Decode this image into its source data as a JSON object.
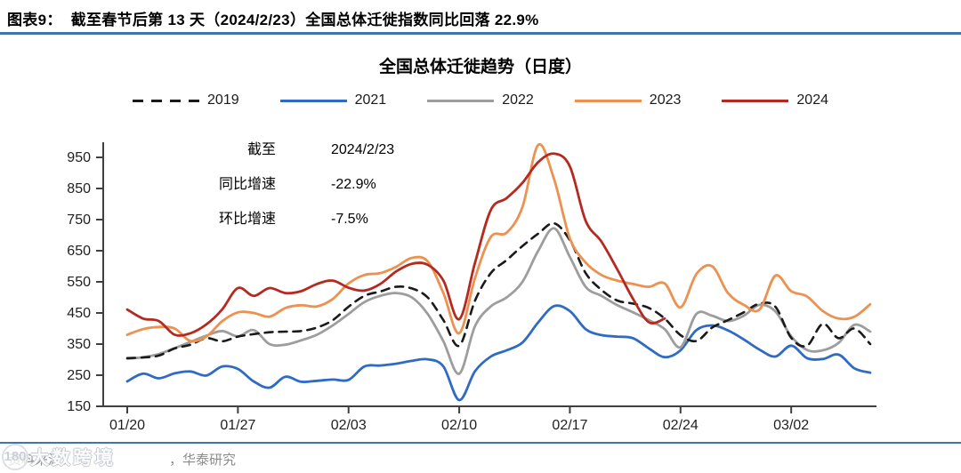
{
  "page": {
    "figure_label": "图表9：",
    "figure_title": "截至春节后第 13 天（2024/2/23）全国总体迁徙指数同比回落 22.9%"
  },
  "annotation": {
    "rows": [
      {
        "label": "截至",
        "value": "2024/2/23"
      },
      {
        "label": "同比增速",
        "value": "-22.9%"
      },
      {
        "label": "环比增速",
        "value": "-7.5%"
      }
    ]
  },
  "footer": {
    "source_prefix": "资料来源：",
    "source_suffix": "，华泰研究",
    "watermark_logo": "180",
    "watermark_text": "大数跨境"
  },
  "chart_data": {
    "type": "line",
    "title": "全国总体迁徙趋势（日度）",
    "xlabel": "",
    "ylabel": "",
    "ylim": [
      150,
      950
    ],
    "y_ticks": [
      150,
      250,
      350,
      450,
      550,
      650,
      750,
      850,
      950
    ],
    "grid": false,
    "legend_position": "top",
    "x": [
      "01/20",
      "01/21",
      "01/22",
      "01/23",
      "01/24",
      "01/25",
      "01/26",
      "01/27",
      "01/28",
      "01/29",
      "01/30",
      "01/31",
      "02/01",
      "02/02",
      "02/03",
      "02/04",
      "02/05",
      "02/06",
      "02/07",
      "02/08",
      "02/09",
      "02/10",
      "02/11",
      "02/12",
      "02/13",
      "02/14",
      "02/15",
      "02/16",
      "02/17",
      "02/18",
      "02/19",
      "02/20",
      "02/21",
      "02/22",
      "02/23",
      "02/24",
      "02/25",
      "02/26",
      "02/27",
      "02/28",
      "02/29",
      "03/01",
      "03/02",
      "03/03",
      "03/04",
      "03/05",
      "03/06",
      "03/07"
    ],
    "x_tick_labels": [
      "01/20",
      "01/27",
      "02/03",
      "02/10",
      "02/17",
      "02/24",
      "03/02"
    ],
    "x_tick_indices": [
      0,
      7,
      14,
      21,
      28,
      35,
      42
    ],
    "series": [
      {
        "name": "2019",
        "color": "#1a1a1a",
        "dash": true,
        "values": [
          305,
          307,
          313,
          336,
          348,
          369,
          359,
          374,
          382,
          388,
          390,
          392,
          403,
          427,
          470,
          505,
          519,
          534,
          529,
          500,
          427,
          345,
          490,
          578,
          620,
          665,
          705,
          738,
          684,
          578,
          524,
          490,
          480,
          466,
          432,
          379,
          360,
          403,
          427,
          452,
          480,
          470,
          370,
          345,
          415,
          369,
          400,
          350
        ]
      },
      {
        "name": "2021",
        "color": "#2f6bc4",
        "dash": false,
        "values": [
          230,
          255,
          240,
          256,
          262,
          249,
          278,
          270,
          230,
          210,
          245,
          229,
          232,
          236,
          235,
          278,
          281,
          287,
          296,
          301,
          278,
          170,
          263,
          310,
          330,
          355,
          420,
          472,
          456,
          398,
          379,
          374,
          369,
          336,
          308,
          330,
          395,
          410,
          394,
          365,
          332,
          310,
          345,
          305,
          302,
          316,
          272,
          258
        ]
      },
      {
        "name": "2022",
        "color": "#9d9d9d",
        "dash": false,
        "values": [
          303,
          308,
          318,
          337,
          357,
          377,
          392,
          375,
          395,
          350,
          348,
          362,
          380,
          410,
          447,
          485,
          505,
          514,
          500,
          447,
          359,
          255,
          408,
          471,
          500,
          550,
          650,
          722,
          630,
          534,
          505,
          475,
          452,
          427,
          398,
          340,
          447,
          441,
          424,
          441,
          476,
          455,
          375,
          331,
          330,
          354,
          412,
          390
        ]
      },
      {
        "name": "2023",
        "color": "#ed9150",
        "dash": false,
        "values": [
          380,
          398,
          405,
          400,
          360,
          374,
          423,
          452,
          450,
          438,
          466,
          475,
          471,
          495,
          545,
          572,
          578,
          598,
          627,
          616,
          514,
          385,
          563,
          694,
          708,
          790,
          990,
          880,
          690,
          612,
          572,
          554,
          543,
          534,
          545,
          468,
          575,
          600,
          514,
          476,
          461,
          570,
          520,
          503,
          456,
          432,
          438,
          478
        ]
      },
      {
        "name": "2024",
        "color": "#b52a20",
        "dash": false,
        "values": [
          461,
          432,
          424,
          380,
          385,
          413,
          461,
          530,
          505,
          530,
          514,
          520,
          543,
          554,
          531,
          522,
          543,
          583,
          608,
          605,
          554,
          430,
          612,
          781,
          819,
          868,
          935,
          962,
          921,
          746,
          679,
          590,
          495,
          420,
          432
        ]
      }
    ],
    "draw_order": [
      1,
      2,
      0,
      3,
      4
    ],
    "annotation_note": "截至 2024/2/23 同比增速 -22.9% 环比增速 -7.5%"
  }
}
